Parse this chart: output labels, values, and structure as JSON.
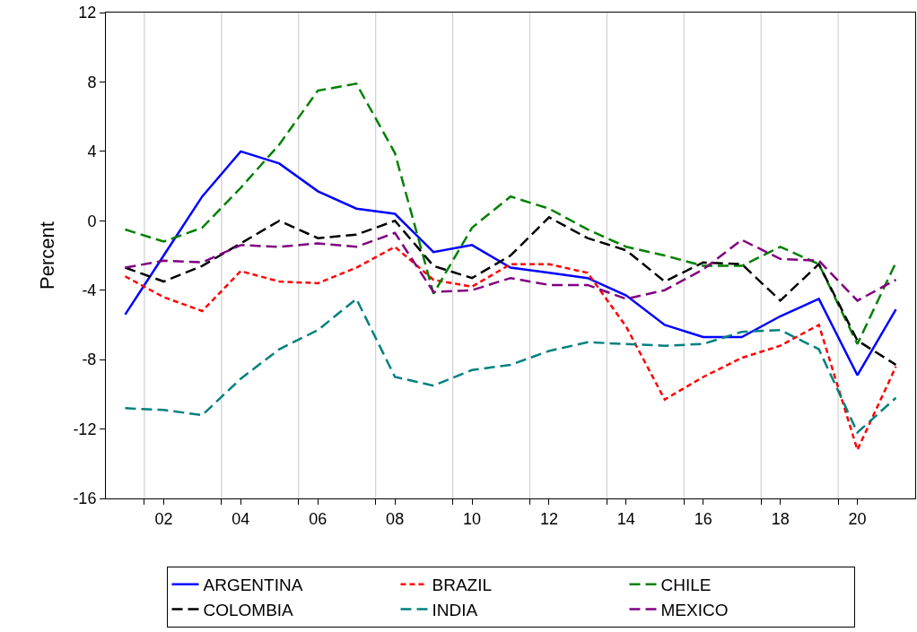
{
  "chart_data": {
    "type": "line",
    "ylabel": "Percent",
    "x": [
      2001,
      2002,
      2003,
      2004,
      2005,
      2006,
      2007,
      2008,
      2009,
      2010,
      2011,
      2012,
      2013,
      2014,
      2015,
      2016,
      2017,
      2018,
      2019,
      2020,
      2021
    ],
    "xlim": [
      2000.5,
      2021.5
    ],
    "xticks": [
      {
        "value": 2001.5,
        "label": null
      },
      {
        "value": 2002,
        "label": "02"
      },
      {
        "value": 2003.5,
        "label": null
      },
      {
        "value": 2004,
        "label": "04"
      },
      {
        "value": 2005.5,
        "label": null
      },
      {
        "value": 2006,
        "label": "06"
      },
      {
        "value": 2007.5,
        "label": null
      },
      {
        "value": 2008,
        "label": "08"
      },
      {
        "value": 2009.5,
        "label": null
      },
      {
        "value": 2010,
        "label": "10"
      },
      {
        "value": 2011.5,
        "label": null
      },
      {
        "value": 2012,
        "label": "12"
      },
      {
        "value": 2013.5,
        "label": null
      },
      {
        "value": 2014,
        "label": "14"
      },
      {
        "value": 2015.5,
        "label": null
      },
      {
        "value": 2016,
        "label": "16"
      },
      {
        "value": 2017.5,
        "label": null
      },
      {
        "value": 2018,
        "label": "18"
      },
      {
        "value": 2019.5,
        "label": null
      },
      {
        "value": 2020,
        "label": "20"
      }
    ],
    "ylim": [
      -16,
      12
    ],
    "yticks": [
      -16,
      -12,
      -8,
      -4,
      0,
      4,
      8,
      12
    ],
    "grid": "x",
    "legend": "bottom",
    "series": [
      {
        "name": "ARGENTINA",
        "color": "#0000ff",
        "line_style": "solid",
        "values": [
          -5.4,
          -2.0,
          1.4,
          4.0,
          3.3,
          1.7,
          0.7,
          0.4,
          -1.8,
          -1.4,
          -2.7,
          -3.0,
          -3.3,
          -4.3,
          -6.0,
          -6.7,
          -6.7,
          -5.5,
          -4.5,
          -8.9,
          -5.1
        ]
      },
      {
        "name": "BRAZIL",
        "color": "#ff0000",
        "line_style": "dotted",
        "values": [
          -3.2,
          -4.4,
          -5.2,
          -2.9,
          -3.5,
          -3.6,
          -2.7,
          -1.5,
          -3.4,
          -3.8,
          -2.5,
          -2.5,
          -3.0,
          -6.1,
          -10.3,
          -9.0,
          -7.9,
          -7.2,
          -6.0,
          -13.2,
          -8.4
        ]
      },
      {
        "name": "CHILE",
        "color": "#008000",
        "line_style": "dashed",
        "values": [
          -0.5,
          -1.2,
          -0.4,
          1.9,
          4.4,
          7.5,
          7.9,
          3.9,
          -4.2,
          -0.4,
          1.4,
          0.7,
          -0.5,
          -1.5,
          -2.0,
          -2.6,
          -2.6,
          -1.5,
          -2.5,
          -7.1,
          -2.4
        ]
      },
      {
        "name": "COLOMBIA",
        "color": "#000000",
        "line_style": "dashed",
        "values": [
          -2.7,
          -3.5,
          -2.6,
          -1.3,
          0.0,
          -1.0,
          -0.8,
          0.0,
          -2.6,
          -3.3,
          -2.0,
          0.2,
          -1.0,
          -1.7,
          -3.5,
          -2.4,
          -2.5,
          -4.6,
          -2.5,
          -6.9,
          -8.3
        ]
      },
      {
        "name": "INDIA",
        "color": "#008080",
        "line_style": "dashed",
        "values": [
          -10.8,
          -10.9,
          -11.2,
          -9.1,
          -7.4,
          -6.3,
          -4.5,
          -9.0,
          -9.5,
          -8.6,
          -8.3,
          -7.5,
          -7.0,
          -7.1,
          -7.2,
          -7.1,
          -6.4,
          -6.3,
          -7.4,
          -12.2,
          -10.2
        ]
      },
      {
        "name": "MEXICO",
        "color": "#800080",
        "line_style": "dashed",
        "values": [
          -2.7,
          -2.3,
          -2.4,
          -1.4,
          -1.5,
          -1.3,
          -1.5,
          -0.7,
          -4.1,
          -4.0,
          -3.3,
          -3.7,
          -3.7,
          -4.5,
          -4.0,
          -2.8,
          -1.1,
          -2.2,
          -2.3,
          -4.6,
          -3.4
        ]
      }
    ]
  }
}
